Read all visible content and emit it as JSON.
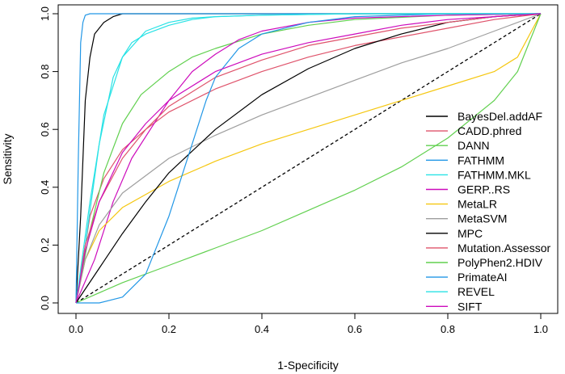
{
  "chart_data": {
    "type": "line",
    "title": "",
    "xlabel": "1-Specificity",
    "ylabel": "Sensitivity",
    "xlim": [
      0,
      1
    ],
    "ylim": [
      0,
      1
    ],
    "x_ticks": [
      "0.0",
      "0.2",
      "0.4",
      "0.6",
      "0.8",
      "1.0"
    ],
    "y_ticks": [
      "0.0",
      "0.2",
      "0.4",
      "0.6",
      "0.8",
      "1.0"
    ],
    "grid": false,
    "legend_position": "bottom-right",
    "reference_line": {
      "style": "dashed",
      "color": "#000000",
      "from": [
        0,
        0
      ],
      "to": [
        1,
        1
      ]
    },
    "series": [
      {
        "name": "BayesDel.addAF",
        "color": "#000000",
        "x": [
          0,
          0.01,
          0.02,
          0.03,
          0.04,
          0.06,
          0.08,
          0.1,
          0.15,
          0.2,
          0.4,
          0.6,
          0.8,
          1.0
        ],
        "y": [
          0,
          0.3,
          0.7,
          0.85,
          0.93,
          0.97,
          0.99,
          1.0,
          1.0,
          1.0,
          1.0,
          1.0,
          1.0,
          1.0
        ]
      },
      {
        "name": "CADD.phred",
        "color": "#DF536B",
        "x": [
          0,
          0.01,
          0.03,
          0.06,
          0.1,
          0.15,
          0.2,
          0.3,
          0.4,
          0.5,
          0.6,
          0.7,
          0.8,
          0.9,
          1.0
        ],
        "y": [
          0,
          0.1,
          0.3,
          0.43,
          0.53,
          0.6,
          0.66,
          0.74,
          0.8,
          0.85,
          0.89,
          0.92,
          0.95,
          0.98,
          1.0
        ]
      },
      {
        "name": "DANN",
        "color": "#61D04F",
        "x": [
          0,
          0.03,
          0.06,
          0.1,
          0.14,
          0.2,
          0.25,
          0.3,
          0.4,
          0.5,
          0.6,
          0.8,
          1.0
        ],
        "y": [
          0,
          0.25,
          0.45,
          0.62,
          0.72,
          0.8,
          0.85,
          0.88,
          0.93,
          0.96,
          0.98,
          0.995,
          1.0
        ]
      },
      {
        "name": "FATHMM",
        "color": "#2297E6",
        "x": [
          0,
          0.005,
          0.01,
          0.015,
          0.02,
          0.03,
          0.05,
          0.1,
          0.2,
          0.4,
          0.6,
          0.8,
          1.0
        ],
        "y": [
          0,
          0.5,
          0.9,
          0.97,
          0.995,
          1.0,
          1.0,
          1.0,
          1.0,
          1.0,
          1.0,
          1.0,
          1.0
        ]
      },
      {
        "name": "FATHMM.MKL",
        "color": "#28E2E5",
        "x": [
          0,
          0.02,
          0.05,
          0.08,
          0.1,
          0.12,
          0.15,
          0.2,
          0.25,
          0.3,
          0.4,
          0.6,
          0.8,
          1.0
        ],
        "y": [
          0,
          0.2,
          0.55,
          0.78,
          0.85,
          0.9,
          0.93,
          0.96,
          0.98,
          0.99,
          0.995,
          1.0,
          1.0,
          1.0
        ]
      },
      {
        "name": "GERP..RS",
        "color": "#CD0BBC",
        "x": [
          0,
          0.04,
          0.08,
          0.12,
          0.16,
          0.2,
          0.25,
          0.3,
          0.35,
          0.4,
          0.5,
          0.6,
          0.8,
          1.0
        ],
        "y": [
          0,
          0.15,
          0.35,
          0.5,
          0.6,
          0.7,
          0.8,
          0.86,
          0.91,
          0.94,
          0.97,
          0.985,
          0.995,
          1.0
        ]
      },
      {
        "name": "MetaLR",
        "color": "#F5C710",
        "x": [
          0,
          0.02,
          0.05,
          0.1,
          0.2,
          0.3,
          0.4,
          0.5,
          0.6,
          0.7,
          0.8,
          0.9,
          0.95,
          1.0
        ],
        "y": [
          0,
          0.15,
          0.25,
          0.33,
          0.42,
          0.49,
          0.55,
          0.6,
          0.65,
          0.7,
          0.75,
          0.8,
          0.85,
          1.0
        ]
      },
      {
        "name": "MetaSVM",
        "color": "#9E9E9E",
        "x": [
          0,
          0.02,
          0.05,
          0.1,
          0.2,
          0.3,
          0.4,
          0.5,
          0.6,
          0.7,
          0.8,
          0.9,
          1.0
        ],
        "y": [
          0,
          0.15,
          0.27,
          0.38,
          0.5,
          0.58,
          0.65,
          0.71,
          0.77,
          0.83,
          0.88,
          0.94,
          1.0
        ]
      },
      {
        "name": "MPC",
        "color": "#000000",
        "x": [
          0,
          0.05,
          0.1,
          0.15,
          0.2,
          0.3,
          0.4,
          0.5,
          0.6,
          0.7,
          0.8,
          0.9,
          1.0
        ],
        "y": [
          0,
          0.12,
          0.24,
          0.35,
          0.45,
          0.6,
          0.72,
          0.81,
          0.88,
          0.93,
          0.97,
          0.99,
          1.0
        ]
      },
      {
        "name": "Mutation.Assessor",
        "color": "#DF536B",
        "x": [
          0,
          0.02,
          0.05,
          0.1,
          0.15,
          0.2,
          0.3,
          0.4,
          0.5,
          0.6,
          0.7,
          0.8,
          0.9,
          1.0
        ],
        "y": [
          0,
          0.2,
          0.35,
          0.5,
          0.6,
          0.68,
          0.78,
          0.84,
          0.89,
          0.92,
          0.95,
          0.97,
          0.99,
          1.0
        ]
      },
      {
        "name": "PolyPhen2.HDIV",
        "color": "#61D04F",
        "x": [
          0,
          0.1,
          0.2,
          0.3,
          0.4,
          0.5,
          0.6,
          0.7,
          0.8,
          0.9,
          0.95,
          1.0
        ],
        "y": [
          0,
          0.07,
          0.13,
          0.19,
          0.25,
          0.32,
          0.39,
          0.47,
          0.57,
          0.7,
          0.8,
          1.0
        ]
      },
      {
        "name": "PrimateAI",
        "color": "#2297E6",
        "x": [
          0,
          0.05,
          0.1,
          0.15,
          0.2,
          0.22,
          0.25,
          0.28,
          0.3,
          0.35,
          0.4,
          0.5,
          0.6,
          0.8,
          1.0
        ],
        "y": [
          0,
          0.0,
          0.02,
          0.1,
          0.3,
          0.4,
          0.55,
          0.7,
          0.78,
          0.88,
          0.93,
          0.97,
          0.99,
          1.0,
          1.0
        ]
      },
      {
        "name": "REVEL",
        "color": "#28E2E5",
        "x": [
          0,
          0.03,
          0.06,
          0.1,
          0.15,
          0.2,
          0.25,
          0.3,
          0.4,
          0.6,
          0.8,
          1.0
        ],
        "y": [
          0,
          0.35,
          0.65,
          0.85,
          0.94,
          0.97,
          0.985,
          0.99,
          0.995,
          1.0,
          1.0,
          1.0
        ]
      },
      {
        "name": "SIFT",
        "color": "#CD0BBC",
        "x": [
          0,
          0.02,
          0.05,
          0.1,
          0.15,
          0.2,
          0.3,
          0.4,
          0.5,
          0.6,
          0.7,
          0.8,
          0.9,
          1.0
        ],
        "y": [
          0,
          0.18,
          0.35,
          0.52,
          0.62,
          0.7,
          0.8,
          0.86,
          0.9,
          0.93,
          0.96,
          0.98,
          0.99,
          1.0
        ]
      }
    ]
  }
}
